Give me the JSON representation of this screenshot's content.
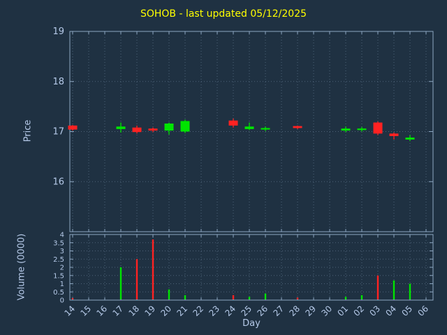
{
  "chart_data": {
    "type": "candlestick",
    "title": "SOHOB - last updated 05/12/2025",
    "xlabel": "Day",
    "price_ylabel": "Price",
    "volume_ylabel": "Volume (0000)",
    "price_ylim": [
      15,
      19
    ],
    "price_yticks": [
      "16",
      "17",
      "18",
      "19"
    ],
    "volume_ylim": [
      0,
      4
    ],
    "volume_yticks": [
      "0",
      "0.5",
      "1",
      "1.5",
      "2",
      "2.5",
      "3",
      "3.5",
      "4"
    ],
    "grid": "dotted",
    "legend": "none",
    "days": [
      "14",
      "15",
      "16",
      "17",
      "18",
      "19",
      "20",
      "21",
      "22",
      "23",
      "24",
      "25",
      "26",
      "27",
      "28",
      "29",
      "30",
      "01",
      "02",
      "03",
      "04",
      "05",
      "06"
    ],
    "candles": [
      {
        "day": "14",
        "open": 17.12,
        "high": 17.13,
        "low": 17.02,
        "close": 17.04,
        "volume": 0.12
      },
      {
        "day": "17",
        "open": 17.05,
        "high": 17.18,
        "low": 16.98,
        "close": 17.1,
        "volume": 2.0
      },
      {
        "day": "18",
        "open": 17.08,
        "high": 17.12,
        "low": 16.96,
        "close": 16.99,
        "volume": 2.5
      },
      {
        "day": "19",
        "open": 17.06,
        "high": 17.08,
        "low": 16.99,
        "close": 17.02,
        "volume": 3.7
      },
      {
        "day": "20",
        "open": 17.02,
        "high": 17.18,
        "low": 16.94,
        "close": 17.16,
        "volume": 0.65
      },
      {
        "day": "21",
        "open": 17.0,
        "high": 17.24,
        "low": 16.97,
        "close": 17.21,
        "volume": 0.3
      },
      {
        "day": "24",
        "open": 17.22,
        "high": 17.26,
        "low": 17.08,
        "close": 17.12,
        "volume": 0.3
      },
      {
        "day": "25",
        "open": 17.05,
        "high": 17.18,
        "low": 17.03,
        "close": 17.1,
        "volume": 0.2
      },
      {
        "day": "26",
        "open": 17.04,
        "high": 17.1,
        "low": 17.01,
        "close": 17.07,
        "volume": 0.4
      },
      {
        "day": "28",
        "open": 17.11,
        "high": 17.12,
        "low": 17.05,
        "close": 17.07,
        "volume": 0.15
      },
      {
        "day": "01",
        "open": 17.02,
        "high": 17.1,
        "low": 16.99,
        "close": 17.06,
        "volume": 0.2
      },
      {
        "day": "02",
        "open": 17.03,
        "high": 17.09,
        "low": 17.0,
        "close": 17.06,
        "volume": 0.3
      },
      {
        "day": "03",
        "open": 17.18,
        "high": 17.2,
        "low": 16.93,
        "close": 16.96,
        "volume": 1.5
      },
      {
        "day": "04",
        "open": 16.96,
        "high": 16.98,
        "low": 16.84,
        "close": 16.91,
        "volume": 1.2,
        "vdir": "up"
      },
      {
        "day": "05",
        "open": 16.84,
        "high": 16.93,
        "low": 16.81,
        "close": 16.88,
        "volume": 1.0
      }
    ],
    "colors": {
      "background": "#1f3142",
      "title": "#ffff00",
      "text": "#b5c9e8",
      "border": "#8ea8c3",
      "grid": "#4e6278",
      "up": "#00e500",
      "down": "#ff2222"
    }
  }
}
